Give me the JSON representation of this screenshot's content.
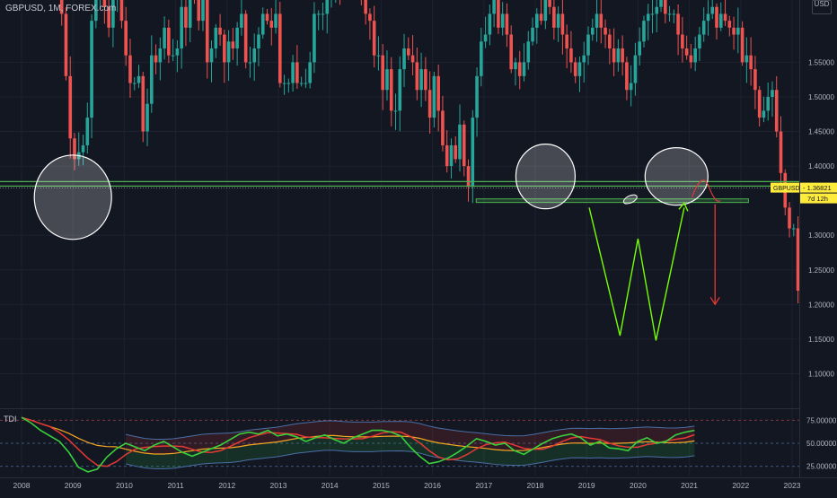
{
  "header": {
    "symbol_title": "GBPUSD, 1M, FOREX.com",
    "currency": "USD"
  },
  "price_axis": {
    "tick_labels": [
      "1.55000",
      "1.50000",
      "1.45000",
      "1.40000",
      "1.30000",
      "1.25000",
      "1.20000",
      "1.15000",
      "1.10000"
    ]
  },
  "price_tag": {
    "label": "GBPUSD",
    "value": "1.36821",
    "countdown": "7d 12h"
  },
  "indicator": {
    "name": "TDI",
    "tick_labels": [
      "75.00000",
      "50.00000",
      "25.00000"
    ]
  },
  "time_axis": {
    "tick_labels": [
      "2008",
      "2009",
      "2010",
      "2011",
      "2012",
      "2013",
      "2014",
      "2015",
      "2016",
      "2017",
      "2018",
      "2019",
      "2020",
      "2021",
      "2022",
      "2023"
    ]
  },
  "colors": {
    "background": "#131722",
    "up_candle": "#26a69a",
    "down_candle": "#ef5350",
    "resistance_line": "#4caf50",
    "pattern_line": "#76ff03",
    "target_arrow": "#e53935",
    "price_tag_bg": "#ffeb3b",
    "tdi_rsi": "#39d03c",
    "tdi_signal": "#e53935",
    "tdi_base": "#f5a623",
    "tdi_bands": "#4a6fa5"
  },
  "chart_data": {
    "type": "candlestick",
    "x_start": 2008,
    "x_end": 2023,
    "ylim": [
      1.07,
      1.6
    ],
    "monthly_close": [
      1.53,
      1.48,
      1.43,
      1.4,
      1.43,
      1.41,
      1.46,
      1.4,
      1.37,
      1.47,
      1.53,
      1.58,
      1.59,
      1.62,
      1.64,
      1.6,
      1.62,
      1.59,
      1.54,
      1.55,
      1.53,
      1.55,
      1.58,
      1.6,
      1.62,
      1.61,
      1.65,
      1.63,
      1.6,
      1.62,
      1.59,
      1.57,
      1.55,
      1.53,
      1.55,
      1.56,
      1.59,
      1.6,
      1.62,
      1.6,
      1.59,
      1.57,
      1.55,
      1.57,
      1.55,
      1.51,
      1.52,
      1.56,
      1.58,
      1.61,
      1.62,
      1.62,
      1.63,
      1.64,
      1.62,
      1.62,
      1.62,
      1.59,
      1.57,
      1.56,
      1.55,
      1.57,
      1.59,
      1.61,
      1.62,
      1.63,
      1.6,
      1.62,
      1.61,
      1.6,
      1.59,
      1.6,
      1.55,
      1.56,
      1.54,
      1.51,
      1.47,
      1.48,
      1.5,
      1.51,
      1.45,
      1.39,
      1.34,
      1.31,
      1.31,
      1.22,
      1.22,
      1.23,
      1.24,
      1.27,
      1.3,
      1.31,
      1.33,
      1.35,
      1.34,
      1.35,
      1.4,
      1.39,
      1.4,
      1.38,
      1.34,
      1.33,
      1.31,
      1.31,
      1.28,
      1.3,
      1.28,
      1.27,
      1.31,
      1.3,
      1.32,
      1.3,
      1.29,
      1.27,
      1.22,
      1.22,
      1.21,
      1.24,
      1.27,
      1.31,
      1.28,
      1.3,
      1.24,
      1.25,
      1.26,
      1.29,
      1.31,
      1.33,
      1.29,
      1.3,
      1.33,
      1.37,
      1.367
    ],
    "monthly_close_history_2008_2015": [
      1.98,
      1.99,
      1.98,
      1.98,
      1.96,
      1.99,
      1.98,
      1.82,
      1.79,
      1.62,
      1.53,
      1.44,
      1.41,
      1.42,
      1.43,
      1.47,
      1.61,
      1.64,
      1.67,
      1.63,
      1.6,
      1.65,
      1.65,
      1.61,
      1.56,
      1.52,
      1.52,
      1.53,
      1.45,
      1.49,
      1.56,
      1.55,
      1.57,
      1.6,
      1.56,
      1.56,
      1.57,
      1.63,
      1.6,
      1.67,
      1.64,
      1.61,
      1.64,
      1.55,
      1.57,
      1.6,
      1.59,
      1.55,
      1.58,
      1.57,
      1.6,
      1.62,
      1.55,
      1.55,
      1.57,
      1.59,
      1.62,
      1.61,
      1.6,
      1.62,
      1.52,
      1.52,
      1.52,
      1.55,
      1.52,
      1.52,
      1.52,
      1.55,
      1.62,
      1.62,
      1.62,
      1.65,
      1.65,
      1.67,
      1.66,
      1.68,
      1.68,
      1.7,
      1.71,
      1.66,
      1.62,
      1.61,
      1.56,
      1.56,
      1.51,
      1.54,
      1.48,
      1.48,
      1.54,
      1.57,
      1.56,
      1.55,
      1.51,
      1.54,
      1.51,
      1.47
    ],
    "resistance_level": 1.375,
    "neckline_level": 1.35,
    "current_price": 1.36821,
    "projection_target": 1.2,
    "w_pattern": [
      [
        2019.05,
        1.34
      ],
      [
        2019.65,
        1.155
      ],
      [
        2020.0,
        1.295
      ],
      [
        2020.35,
        1.148
      ],
      [
        2020.9,
        1.34
      ]
    ],
    "circles": [
      {
        "x": 2009.0,
        "y": 1.355
      },
      {
        "x": 2018.2,
        "y": 1.385
      },
      {
        "x": 2020.75,
        "y": 1.385
      }
    ],
    "tdi": {
      "ylim": [
        15,
        85
      ],
      "levels": [
        75,
        50,
        25
      ],
      "rsi": [
        78,
        72,
        64,
        58,
        52,
        40,
        24,
        19,
        22,
        35,
        44,
        50,
        46,
        42,
        48,
        52,
        46,
        40,
        36,
        40,
        44,
        48,
        54,
        60,
        62,
        60,
        64,
        58,
        60,
        57,
        52,
        56,
        59,
        54,
        50,
        56,
        60,
        64,
        64,
        62,
        58,
        46,
        36,
        28,
        30,
        34,
        40,
        47,
        55,
        52,
        48,
        50,
        42,
        38,
        44,
        50,
        55,
        58,
        60,
        56,
        48,
        52,
        45,
        44,
        42,
        52,
        56,
        50,
        52,
        59,
        62,
        64
      ]
    }
  }
}
